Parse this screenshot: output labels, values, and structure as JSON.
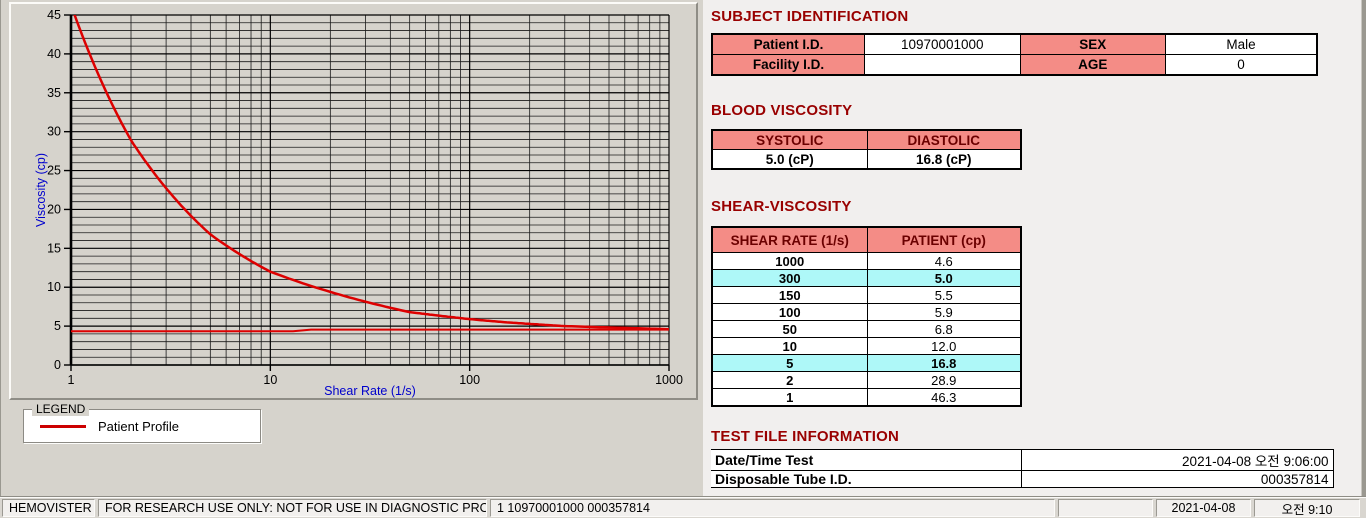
{
  "colors": {
    "heading": "#990000",
    "pink_header": "#f48c86",
    "highlight_cyan": "#aef8f8",
    "curve_red": "#dd0000",
    "axis_label_blue": "#0000cc",
    "panel_gray": "#d6d3cc",
    "right_bg": "#f1efee"
  },
  "chart_data": {
    "type": "line",
    "title": "",
    "xlabel": "Shear Rate (1/s)",
    "ylabel": "Viscosity (cp)",
    "x_scale": "log",
    "xlim": [
      1,
      1000
    ],
    "ylim": [
      0,
      45
    ],
    "y_major_step": 5,
    "y_minor_step": 1,
    "x_major_ticks": [
      1,
      10,
      100,
      1000
    ],
    "x_tick_labels": [
      "1",
      "10",
      "100",
      "1000"
    ],
    "y_tick_labels": [
      "0",
      "5",
      "10",
      "15",
      "20",
      "25",
      "30",
      "35",
      "40",
      "45"
    ],
    "grid": true,
    "legend_position": "below-left",
    "series": [
      {
        "name": "Patient Profile",
        "color": "#dd0000",
        "width": 2.5,
        "smooth": true,
        "x": [
          1,
          2,
          5,
          10,
          50,
          100,
          150,
          300,
          1000
        ],
        "y": [
          46.3,
          28.9,
          16.8,
          12.0,
          6.8,
          5.9,
          5.5,
          5.0,
          4.6
        ]
      },
      {
        "name": "baseline-line",
        "color": "#dd0000",
        "width": 2,
        "smooth": false,
        "x": [
          1,
          13,
          16,
          1000
        ],
        "y": [
          4.35,
          4.35,
          4.55,
          4.55
        ]
      }
    ]
  },
  "legend": {
    "title": "LEGEND",
    "items": [
      {
        "label": "Patient Profile",
        "color": "#cc0000"
      }
    ]
  },
  "subject_identification": {
    "heading": "SUBJECT IDENTIFICATION",
    "rows": [
      {
        "label1": "Patient I.D.",
        "value1": "10970001000",
        "label2": "SEX",
        "value2": "Male"
      },
      {
        "label1": "Facility I.D.",
        "value1": "",
        "label2": "AGE",
        "value2": "0"
      }
    ]
  },
  "blood_viscosity": {
    "heading": "BLOOD VISCOSITY",
    "columns": [
      "SYSTOLIC",
      "DIASTOLIC"
    ],
    "values": [
      "5.0 (cP)",
      "16.8 (cP)"
    ]
  },
  "shear_viscosity": {
    "heading": "SHEAR-VISCOSITY",
    "columns": [
      "SHEAR RATE (1/s)",
      "PATIENT (cp)"
    ],
    "rows": [
      {
        "shear_rate": "1000",
        "patient": "4.6",
        "highlight": false
      },
      {
        "shear_rate": "300",
        "patient": "5.0",
        "highlight": true
      },
      {
        "shear_rate": "150",
        "patient": "5.5",
        "highlight": false
      },
      {
        "shear_rate": "100",
        "patient": "5.9",
        "highlight": false
      },
      {
        "shear_rate": "50",
        "patient": "6.8",
        "highlight": false
      },
      {
        "shear_rate": "10",
        "patient": "12.0",
        "highlight": false
      },
      {
        "shear_rate": "5",
        "patient": "16.8",
        "highlight": true
      },
      {
        "shear_rate": "2",
        "patient": "28.9",
        "highlight": false
      },
      {
        "shear_rate": "1",
        "patient": "46.3",
        "highlight": false
      }
    ]
  },
  "test_file_information": {
    "heading": "TEST FILE INFORMATION",
    "rows": [
      {
        "label": "Date/Time Test",
        "value": "2021-04-08   오전 9:06:00"
      },
      {
        "label": "Disposable Tube I.D.",
        "value": "000357814"
      }
    ]
  },
  "status_bar": {
    "panels": [
      "HEMOVISTER",
      "FOR RESEARCH USE ONLY: NOT FOR USE IN DIAGNOSTIC PROCEDURES",
      "1  10970001000  000357814",
      "",
      "2021-04-08",
      "오전 9:10"
    ]
  }
}
